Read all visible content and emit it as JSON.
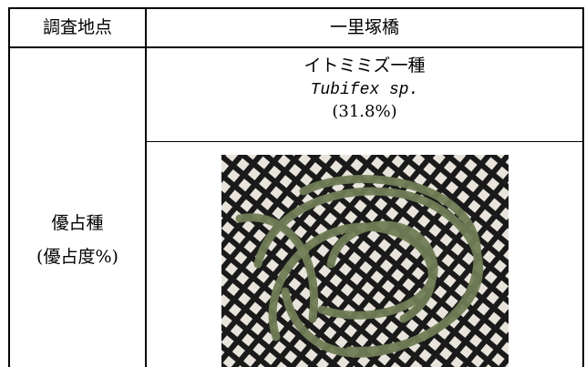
{
  "table": {
    "header": [
      "調査地点",
      "一里塚橋"
    ],
    "row_label": [
      "優占種",
      "(優占度%)"
    ],
    "species": {
      "name": "イトミミズ一種",
      "latin": "Tubifex sp.",
      "share": "(31.8%)"
    }
  }
}
